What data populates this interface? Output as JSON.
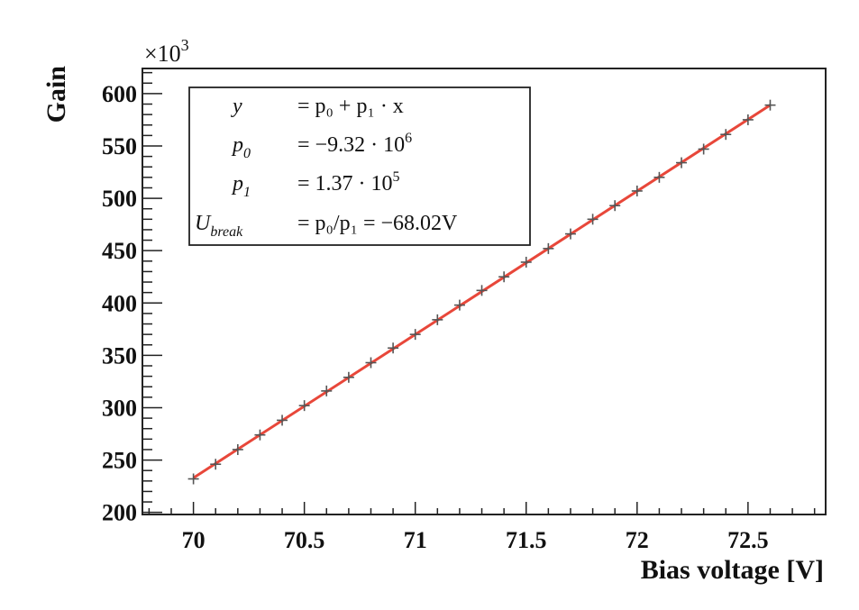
{
  "chart_data": {
    "type": "scatter",
    "xlabel": "Bias voltage  [V]",
    "ylabel": "Gain",
    "y_multiplier": "×10",
    "y_multiplier_exp": "3",
    "xlim": [
      69.77,
      72.85
    ],
    "ylim": [
      198,
      624
    ],
    "x_ticks": [
      70,
      70.5,
      71,
      71.5,
      72,
      72.5
    ],
    "x_tick_labels": [
      "70",
      "70.5",
      "71",
      "71.5",
      "72",
      "72.5"
    ],
    "y_ticks": [
      200,
      250,
      300,
      350,
      400,
      450,
      500,
      550,
      600
    ],
    "y_tick_labels": [
      "200",
      "250",
      "300",
      "350",
      "400",
      "450",
      "500",
      "550",
      "600"
    ],
    "grid": false,
    "series": [
      {
        "marker": "+",
        "color": "#555555",
        "x": [
          70.0,
          70.1,
          70.2,
          70.3,
          70.4,
          70.5,
          70.6,
          70.7,
          70.8,
          70.9,
          71.0,
          71.1,
          71.2,
          71.3,
          71.4,
          71.5,
          71.6,
          71.7,
          71.8,
          71.9,
          72.0,
          72.1,
          72.2,
          72.3,
          72.4,
          72.5,
          72.6
        ],
        "y": [
          232,
          246,
          260,
          274,
          288,
          302,
          316,
          329,
          343,
          357,
          370,
          384,
          398,
          412,
          425,
          439,
          452,
          466,
          480,
          493,
          507,
          520,
          534,
          547,
          561,
          575,
          589
        ]
      }
    ],
    "fit": {
      "color": "#e8473a",
      "x_start": 70.0,
      "x_end": 72.6,
      "y_start": 233,
      "y_end": 589
    },
    "stats_box": {
      "rows": [
        {
          "lhs": "y",
          "lhs_sub": "",
          "rhs_prefix": "= ",
          "rhs": "p₀ + p₁ · x",
          "rhs_exp": ""
        },
        {
          "lhs": "p",
          "lhs_sub": "0",
          "rhs_prefix": "= ",
          "rhs": "−9.32 · 10",
          "rhs_exp": "6"
        },
        {
          "lhs": "p",
          "lhs_sub": "1",
          "rhs_prefix": "= ",
          "rhs": "1.37 · 10",
          "rhs_exp": "5"
        },
        {
          "lhs": "U",
          "lhs_sub": "break",
          "rhs_prefix": "= ",
          "rhs": "p₀/p₁ = −68.02V",
          "rhs_exp": ""
        }
      ]
    }
  }
}
